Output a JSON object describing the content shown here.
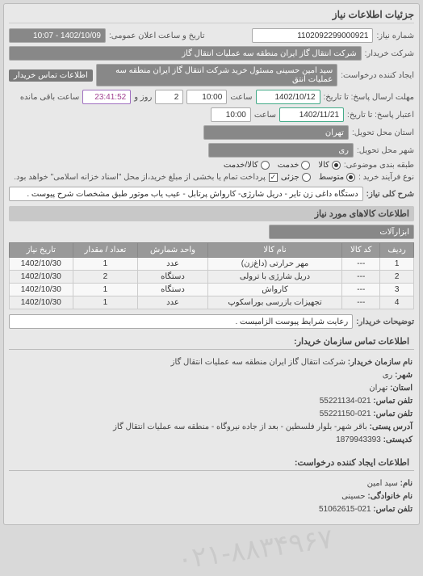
{
  "panel_title": "جزئیات اطلاعات نیاز",
  "header": {
    "need_no_label": "شماره نیاز:",
    "need_no": "1102092299000921",
    "announce_label": "تاریخ و ساعت اعلان عمومی:",
    "announce_value": "1402/10/09 - 10:07",
    "buyer_org_label": "شرکت خریدار:",
    "buyer_org": "شرکت انتقال گاز ایران منطقه سه عملیات انتقال گاز",
    "requester_label": "ایجاد کننده درخواست:",
    "requester": "سید امین حسینی مسئول خرید شرکت انتقال گاز ایران منطقه سه عملیات انتق",
    "contact_btn": "اطلاعات تماس خریدار",
    "deadline_send_label": "مهلت ارسال پاسخ: تا تاریخ:",
    "deadline_send_date": "1402/10/12",
    "time_label": "ساعت",
    "deadline_send_time": "10:00",
    "days_remaining": "2",
    "days_remaining_label": "روز و",
    "countdown": "23:41:52",
    "countdown_label": "ساعت باقی مانده",
    "validity_label": "اعتبار پاسخ: تا تاریخ:",
    "validity_date": "1402/11/21",
    "validity_time": "10:00",
    "province_label": "استان محل تحویل:",
    "province": "تهران",
    "city_label": "شهر محل تحویل:",
    "city": "ری",
    "budget_label": "طبقه بندی موضوعی:",
    "budget_options": {
      "o1": "کالا",
      "o2": "خدمت",
      "o3": "کالا/خدمت"
    },
    "process_label": "نوع فرآیند خرید :",
    "process_options": {
      "o1": "متوسط",
      "o2": "جزئی"
    },
    "process_note": "پرداخت تمام یا بخشی از مبلغ خرید،از محل \"اسناد خزانه اسلامی\" خواهد بود."
  },
  "need": {
    "title_label": "شرح کلی نیاز:",
    "title": "دستگاه داغی زن تایر - دریل شارژی- کارواش پرتابل - عیب یاب موتور طبق مشخصات شرح پیوست ."
  },
  "items": {
    "section": "اطلاعات کالاهای مورد نیاز",
    "filter_label": "ابزارآلات",
    "columns": {
      "c1": "ردیف",
      "c2": "کد کالا",
      "c3": "نام کالا",
      "c4": "واحد شمارش",
      "c5": "تعداد / مقدار",
      "c6": "تاریخ نیاز"
    },
    "rows": [
      {
        "n": "1",
        "code": "---",
        "name": "مهر حرارتی (داغ‌زن)",
        "unit": "عدد",
        "qty": "1",
        "date": "1402/10/30"
      },
      {
        "n": "2",
        "code": "---",
        "name": "دریل شارژی با ترولی",
        "unit": "دستگاه",
        "qty": "2",
        "date": "1402/10/30"
      },
      {
        "n": "3",
        "code": "---",
        "name": "کارواش",
        "unit": "دستگاه",
        "qty": "1",
        "date": "1402/10/30"
      },
      {
        "n": "4",
        "code": "---",
        "name": "تجهیزات بازرسی بوراسکوپ",
        "unit": "عدد",
        "qty": "1",
        "date": "1402/10/30"
      }
    ]
  },
  "buyer_note": {
    "label": "توضیحات خریدار:",
    "value": "رعایت شرایط پیوست الزامیست ."
  },
  "contact_buyer": {
    "section": "اطلاعات تماس سازمان خریدار:",
    "org_label": "نام سازمان خریدار:",
    "org": "شرکت انتقال گاز ایران منطقه سه عملیات انتقال گاز",
    "city_label": "شهر:",
    "city": "ری",
    "province_label": "استان:",
    "province": "تهران",
    "phone_label": "تلفن تماس:",
    "phone": "021-55221134",
    "fax_label": "تلفن تماس:",
    "fax": "021-55221150",
    "address_label": "آدرس پستی:",
    "address": "باقر شهر- بلوار فلسطین - بعد از جاده نیروگاه - منطقه سه عملیات انتقال گاز",
    "postcode_label": "کدپستی:",
    "postcode": "1879943393"
  },
  "contact_requester": {
    "section": "اطلاعات ایجاد کننده درخواست:",
    "fname_label": "نام:",
    "fname": "سید امین",
    "lname_label": "نام خانوادگی:",
    "lname": "حسینی",
    "phone_label": "تلفن تماس:",
    "phone": "021-51062615"
  },
  "watermark": "۰۲۱-۸۸۳۴۹۶۷"
}
